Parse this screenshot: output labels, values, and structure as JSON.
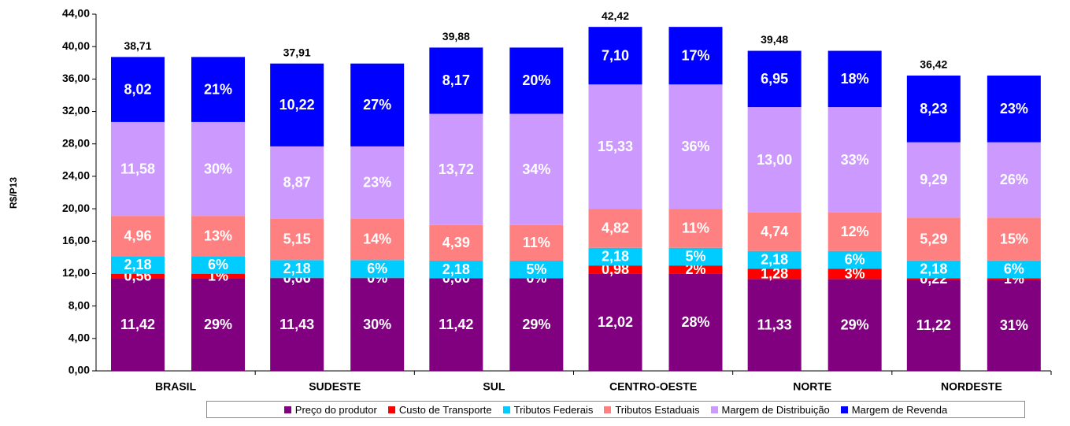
{
  "chart_data": {
    "type": "stacked-bar-pair",
    "y_label": "R$/P13",
    "categories": [
      "BRASIL",
      "SUDESTE",
      "SUL",
      "CENTRO-OESTE",
      "NORTE",
      "NORDESTE"
    ],
    "totals": [
      38.71,
      37.91,
      39.88,
      42.42,
      39.48,
      36.42
    ],
    "total_labels": [
      "38,71",
      "37,91",
      "39,88",
      "42,42",
      "39,48",
      "36,42"
    ],
    "series": [
      {
        "name": "Preço do produtor",
        "color": "#800080",
        "values": [
          11.42,
          11.43,
          11.42,
          12.02,
          11.33,
          11.22
        ],
        "value_labels": [
          "11,42",
          "11,43",
          "11,42",
          "12,02",
          "11,33",
          "11,22"
        ],
        "shares": [
          29,
          30,
          29,
          28,
          29,
          31
        ],
        "share_labels": [
          "29%",
          "30%",
          "29%",
          "28%",
          "29%",
          "31%"
        ]
      },
      {
        "name": "Custo de Transporte",
        "color": "#ff0000",
        "values": [
          0.56,
          0.06,
          0.0,
          0.98,
          1.28,
          0.22
        ],
        "value_labels": [
          "0,56",
          "0,06",
          "0,00",
          "0,98",
          "1,28",
          "0,22"
        ],
        "shares": [
          1,
          0,
          0,
          2,
          3,
          1
        ],
        "share_labels": [
          "1%",
          "0%",
          "0%",
          "2%",
          "3%",
          "1%"
        ]
      },
      {
        "name": "Tributos Federais",
        "color": "#00ccff",
        "values": [
          2.18,
          2.18,
          2.18,
          2.18,
          2.18,
          2.18
        ],
        "value_labels": [
          "2,18",
          "2,18",
          "2,18",
          "2,18",
          "2,18",
          "2,18"
        ],
        "shares": [
          6,
          6,
          5,
          5,
          6,
          6
        ],
        "share_labels": [
          "6%",
          "6%",
          "5%",
          "5%",
          "6%",
          "6%"
        ]
      },
      {
        "name": "Tributos Estaduais",
        "color": "#ff8080",
        "values": [
          4.96,
          5.15,
          4.39,
          4.82,
          4.74,
          5.29
        ],
        "value_labels": [
          "4,96",
          "5,15",
          "4,39",
          "4,82",
          "4,74",
          "5,29"
        ],
        "shares": [
          13,
          14,
          11,
          11,
          12,
          15
        ],
        "share_labels": [
          "13%",
          "14%",
          "11%",
          "11%",
          "12%",
          "15%"
        ]
      },
      {
        "name": "Margem de Distribuição",
        "color": "#cc99ff",
        "values": [
          11.58,
          8.87,
          13.72,
          15.33,
          13.0,
          9.29
        ],
        "value_labels": [
          "11,58",
          "8,87",
          "13,72",
          "15,33",
          "13,00",
          "9,29"
        ],
        "shares": [
          30,
          23,
          34,
          36,
          33,
          26
        ],
        "share_labels": [
          "30%",
          "23%",
          "34%",
          "36%",
          "33%",
          "26%"
        ]
      },
      {
        "name": "Margem de Revenda",
        "color": "#0000ff",
        "values": [
          8.02,
          10.22,
          8.17,
          7.1,
          6.95,
          8.23
        ],
        "value_labels": [
          "8,02",
          "10,22",
          "8,17",
          "7,10",
          "6,95",
          "8,23"
        ],
        "shares": [
          21,
          27,
          20,
          17,
          18,
          23
        ],
        "share_labels": [
          "21%",
          "27%",
          "20%",
          "17%",
          "18%",
          "23%"
        ]
      }
    ],
    "ylim": [
      0,
      44
    ],
    "yticks": [
      {
        "value": 0,
        "label": "0,00"
      },
      {
        "value": 4,
        "label": "4,00"
      },
      {
        "value": 8,
        "label": "8,00"
      },
      {
        "value": 12,
        "label": "12,00"
      },
      {
        "value": 16,
        "label": "16,00"
      },
      {
        "value": 20,
        "label": "20,00"
      },
      {
        "value": 24,
        "label": "24,00"
      },
      {
        "value": 28,
        "label": "28,00"
      },
      {
        "value": 32,
        "label": "32,00"
      },
      {
        "value": 36,
        "label": "36,00"
      },
      {
        "value": 40,
        "label": "40,00"
      },
      {
        "value": 44,
        "label": "44,00"
      }
    ],
    "grid": false
  }
}
